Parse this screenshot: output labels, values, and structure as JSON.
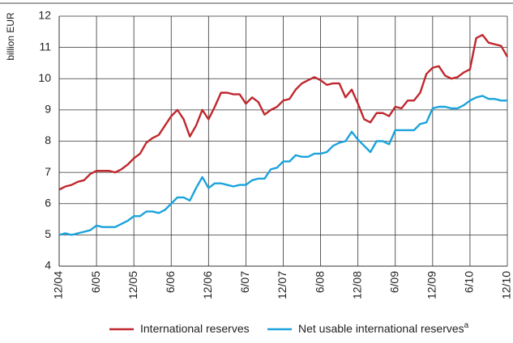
{
  "chart_data": {
    "type": "line",
    "ylabel": "billion EUR",
    "categories": [
      "12/04",
      null,
      null,
      null,
      null,
      null,
      "6/05",
      null,
      null,
      null,
      null,
      null,
      "12/05",
      null,
      null,
      null,
      null,
      null,
      "6/06",
      null,
      null,
      null,
      null,
      null,
      "12/06",
      null,
      null,
      null,
      null,
      null,
      "6/07",
      null,
      null,
      null,
      null,
      null,
      "12/07",
      null,
      null,
      null,
      null,
      null,
      "6/08",
      null,
      null,
      null,
      null,
      null,
      "12/08",
      null,
      null,
      null,
      null,
      null,
      "6/09",
      null,
      null,
      null,
      null,
      null,
      "12/09",
      null,
      null,
      null,
      null,
      null,
      "6/10",
      null,
      null,
      null,
      null,
      null,
      "12/10"
    ],
    "series": [
      {
        "name": "International reserves",
        "color": "#c0272d",
        "values": [
          6.45,
          6.55,
          6.6,
          6.7,
          6.75,
          6.95,
          7.05,
          7.05,
          7.05,
          7.0,
          7.1,
          7.25,
          7.45,
          7.6,
          7.95,
          8.1,
          8.2,
          8.5,
          8.8,
          9.0,
          8.7,
          8.15,
          8.5,
          9.0,
          8.7,
          9.1,
          9.55,
          9.55,
          9.5,
          9.5,
          9.2,
          9.4,
          9.25,
          8.85,
          9.0,
          9.1,
          9.3,
          9.35,
          9.65,
          9.85,
          9.95,
          10.05,
          9.95,
          9.8,
          9.85,
          9.85,
          9.4,
          9.65,
          9.2,
          8.7,
          8.6,
          8.9,
          8.9,
          8.8,
          9.1,
          9.05,
          9.3,
          9.3,
          9.55,
          10.15,
          10.35,
          10.4,
          10.1,
          10.0,
          10.05,
          10.2,
          10.3,
          11.3,
          11.4,
          11.15,
          11.1,
          11.05,
          10.7
        ]
      },
      {
        "name": "Net usable international reserves",
        "footnote_marker": "a",
        "color": "#1aa3dc",
        "values": [
          5.0,
          5.05,
          5.0,
          5.05,
          5.1,
          5.15,
          5.3,
          5.25,
          5.25,
          5.25,
          5.35,
          5.45,
          5.6,
          5.6,
          5.75,
          5.75,
          5.7,
          5.8,
          6.0,
          6.2,
          6.2,
          6.1,
          6.5,
          6.85,
          6.5,
          6.65,
          6.65,
          6.6,
          6.55,
          6.6,
          6.6,
          6.75,
          6.8,
          6.8,
          7.1,
          7.15,
          7.35,
          7.35,
          7.55,
          7.5,
          7.5,
          7.6,
          7.6,
          7.65,
          7.85,
          7.95,
          8.0,
          8.3,
          8.05,
          7.85,
          7.65,
          8.0,
          8.0,
          7.9,
          8.35,
          8.35,
          8.35,
          8.35,
          8.55,
          8.6,
          9.05,
          9.1,
          9.1,
          9.05,
          9.05,
          9.15,
          9.3,
          9.4,
          9.45,
          9.35,
          9.35,
          9.3,
          9.3
        ]
      }
    ],
    "ylim": [
      4,
      12
    ],
    "yticks": [
      4,
      5,
      6,
      7,
      8,
      9,
      10,
      11,
      12
    ],
    "grid": true
  }
}
